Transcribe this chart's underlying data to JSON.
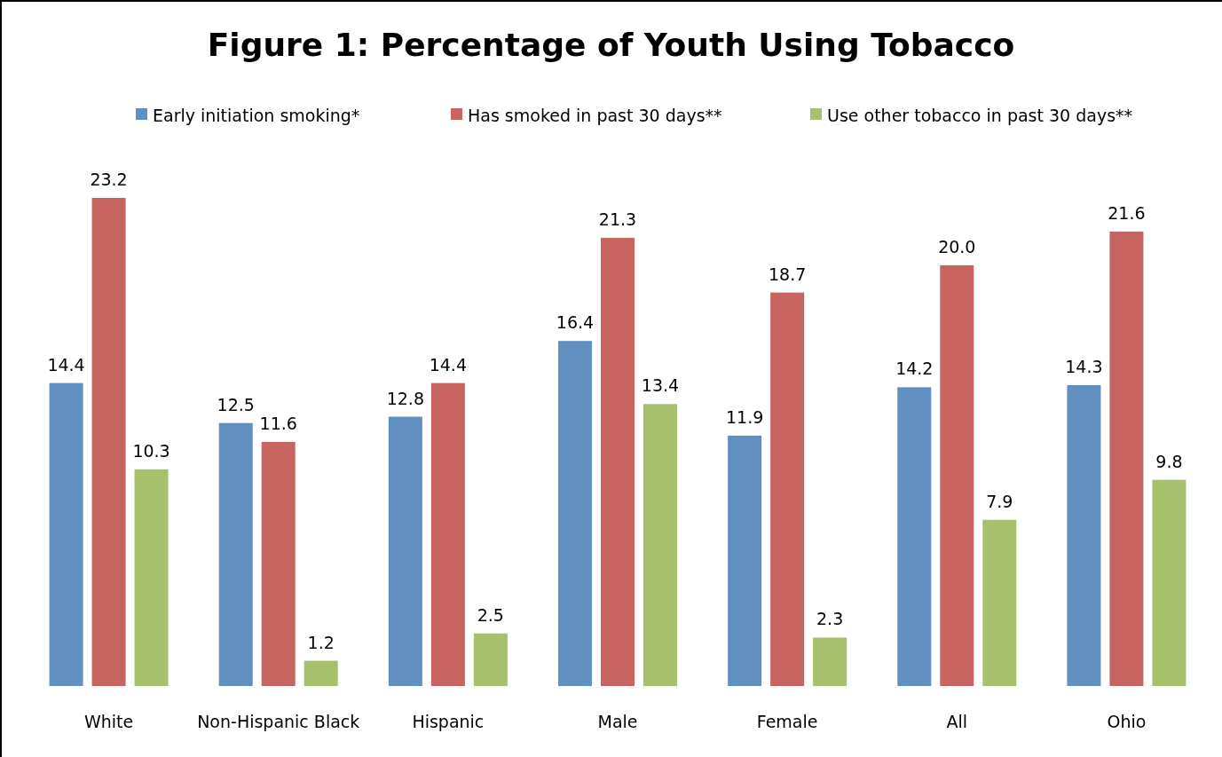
{
  "chart_data": {
    "type": "bar",
    "title": "Figure 1: Percentage of Youth Using Tobacco",
    "categories": [
      "White",
      "Non-Hispanic Black",
      "Hispanic",
      "Male",
      "Female",
      "All",
      "Ohio"
    ],
    "series": [
      {
        "name": "Early initiation smoking*",
        "color": "#618fc0",
        "values": [
          14.4,
          12.5,
          12.8,
          16.4,
          11.9,
          14.2,
          14.3
        ],
        "value_labels": [
          "14.4",
          "12.5",
          "12.8",
          "16.4",
          "11.9",
          "14.2",
          "14.3"
        ]
      },
      {
        "name": "Has smoked in past 30 days**",
        "color": "#c8645f",
        "values": [
          23.2,
          11.6,
          14.4,
          21.3,
          18.7,
          20.0,
          21.6
        ],
        "value_labels": [
          "23.2",
          "11.6",
          "14.4",
          "21.3",
          "18.7",
          "20.0",
          "21.6"
        ]
      },
      {
        "name": "Use other tobacco in past 30 days**",
        "color": "#a6c06c",
        "values": [
          10.3,
          1.2,
          2.5,
          13.4,
          2.3,
          7.9,
          9.8
        ],
        "value_labels": [
          "10.3",
          "1.2",
          "2.5",
          "13.4",
          "2.3",
          "7.9",
          "9.8"
        ]
      }
    ],
    "legend": "top",
    "grid": false
  }
}
